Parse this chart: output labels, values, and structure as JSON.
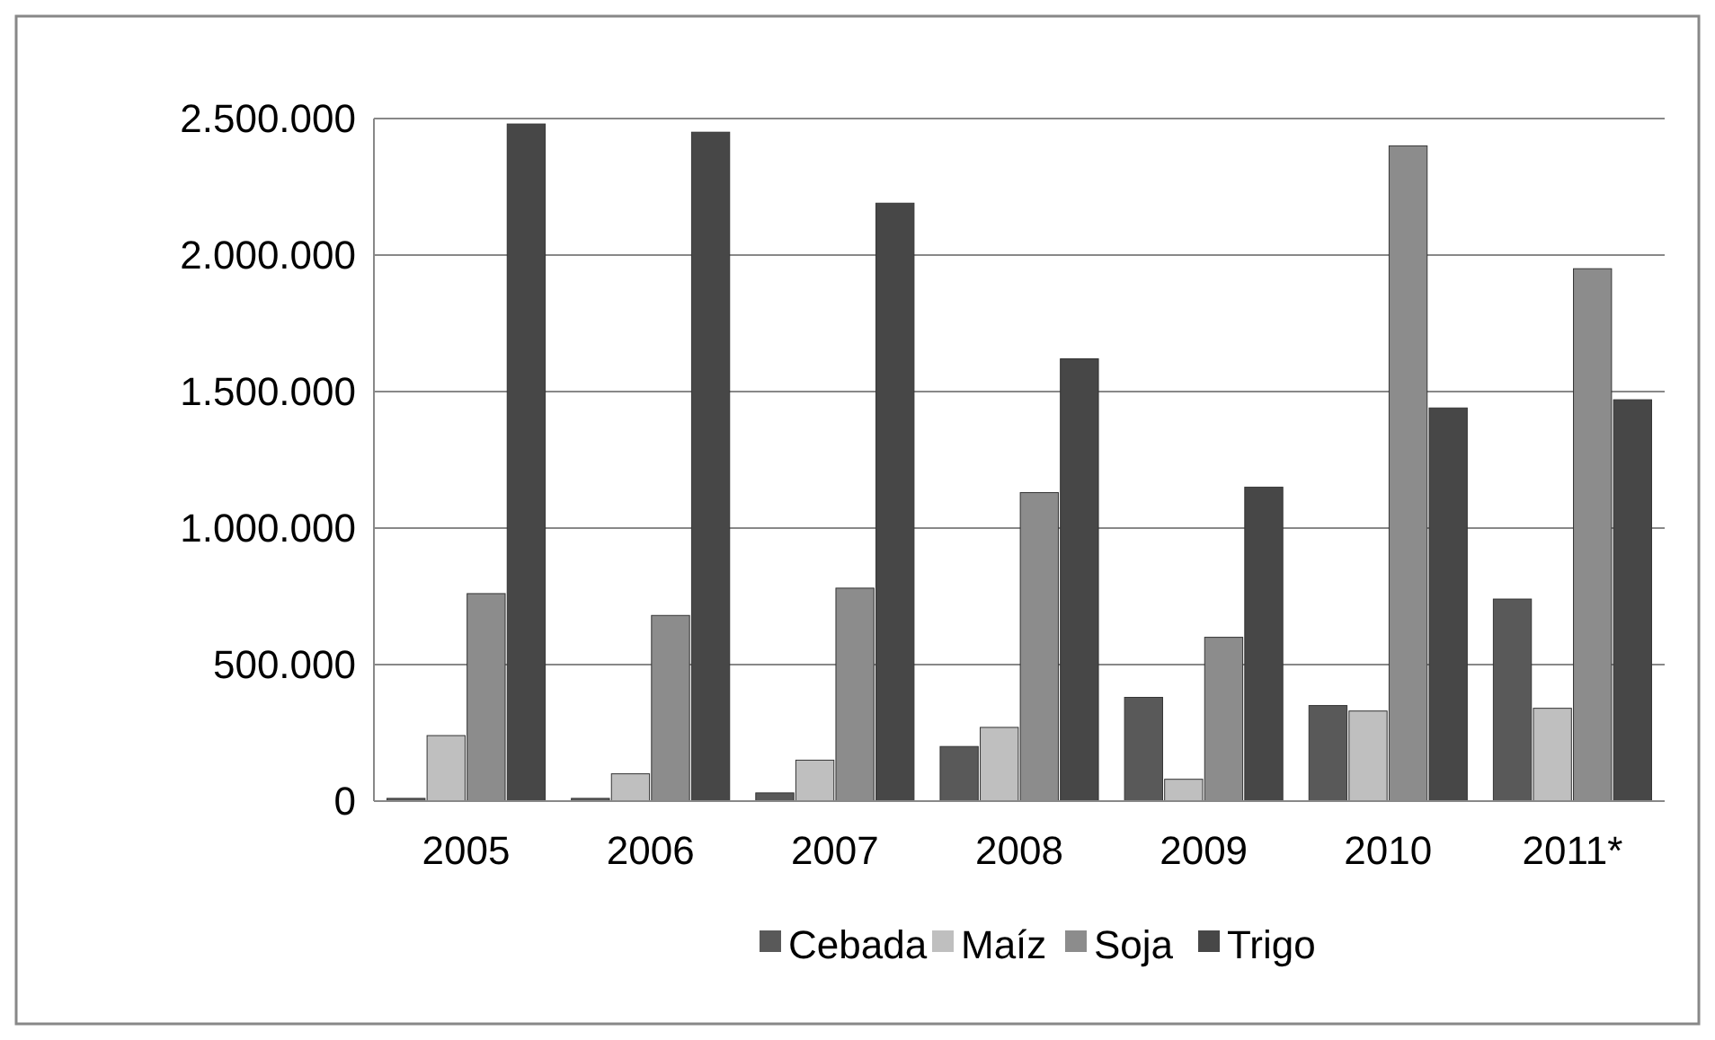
{
  "chart_data": {
    "type": "bar",
    "categories": [
      "2005",
      "2006",
      "2007",
      "2008",
      "2009",
      "2010",
      "2011*"
    ],
    "series": [
      {
        "name": "Cebada",
        "color": "#595959",
        "values": [
          10000,
          10000,
          30000,
          200000,
          380000,
          350000,
          740000
        ]
      },
      {
        "name": "Maíz",
        "color": "#bfbfbf",
        "values": [
          240000,
          100000,
          150000,
          270000,
          80000,
          330000,
          340000
        ]
      },
      {
        "name": "Soja",
        "color": "#8c8c8c",
        "values": [
          760000,
          680000,
          780000,
          1130000,
          600000,
          2400000,
          1950000
        ]
      },
      {
        "name": "Trigo",
        "color": "#474747",
        "values": [
          2480000,
          2450000,
          2190000,
          1620000,
          1150000,
          1440000,
          1470000
        ]
      }
    ],
    "ylim": [
      0,
      2500000
    ],
    "yticks": [
      0,
      {
        "value": 500000,
        "label": "500.000"
      },
      {
        "value": 1000000,
        "label": "1.000.000"
      },
      {
        "value": 1500000,
        "label": "1.500.000"
      },
      {
        "value": 2000000,
        "label": "2.000.000"
      },
      {
        "value": 2500000,
        "label": "2.500.000"
      }
    ],
    "grid": "y",
    "legend": "bottom"
  }
}
